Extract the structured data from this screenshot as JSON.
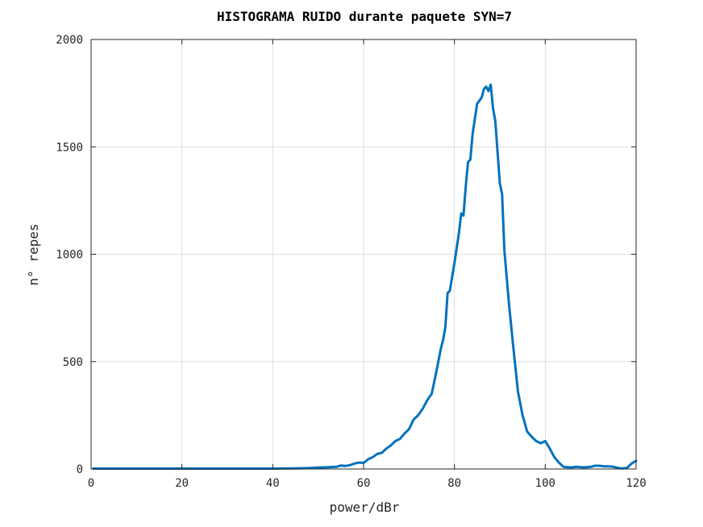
{
  "chart_data": {
    "type": "line",
    "title": "HISTOGRAMA RUIDO durante paquete SYN=7",
    "xlabel": "power/dBr",
    "ylabel": "n° repes",
    "xlim": [
      0,
      120
    ],
    "ylim": [
      0,
      2000
    ],
    "xticks": [
      0,
      20,
      40,
      60,
      80,
      100,
      120
    ],
    "yticks": [
      0,
      500,
      1000,
      1500,
      2000
    ],
    "grid": true,
    "legend": "none",
    "series": [
      {
        "color": "#0072bd",
        "x": [
          0.5,
          5,
          10,
          15,
          20,
          25,
          30,
          35,
          40,
          45,
          48,
          50,
          52,
          54,
          55,
          56,
          57,
          58,
          59,
          60,
          61,
          62,
          63,
          64,
          65,
          66,
          67,
          68,
          69,
          70,
          71,
          72,
          73,
          74,
          75,
          75.5,
          76,
          77,
          77.5,
          78,
          78.5,
          79,
          80,
          81,
          81.5,
          82,
          82.5,
          83,
          83.5,
          84,
          85,
          86,
          86.5,
          87,
          87.5,
          88,
          88.5,
          89,
          90,
          90.5,
          91,
          92,
          93,
          94,
          95,
          96,
          97,
          98,
          99,
          100,
          101,
          102,
          103,
          104,
          105,
          106,
          107,
          108,
          109,
          110,
          111,
          112,
          113,
          114,
          115,
          116,
          117,
          118,
          119,
          120
        ],
        "y": [
          2,
          2,
          2,
          2,
          2,
          2,
          2,
          2,
          2,
          3,
          4,
          7,
          8,
          10,
          16,
          14,
          18,
          25,
          30,
          28,
          45,
          55,
          70,
          75,
          95,
          110,
          130,
          140,
          165,
          185,
          230,
          250,
          280,
          320,
          350,
          400,
          450,
          560,
          600,
          660,
          820,
          830,
          960,
          1100,
          1190,
          1180,
          1320,
          1430,
          1440,
          1560,
          1700,
          1730,
          1770,
          1780,
          1760,
          1790,
          1680,
          1620,
          1330,
          1280,
          1020,
          770,
          560,
          360,
          250,
          175,
          150,
          130,
          120,
          130,
          95,
          55,
          30,
          10,
          8,
          8,
          10,
          8,
          8,
          10,
          15,
          15,
          12,
          12,
          10,
          5,
          3,
          5,
          25,
          38
        ]
      }
    ]
  }
}
